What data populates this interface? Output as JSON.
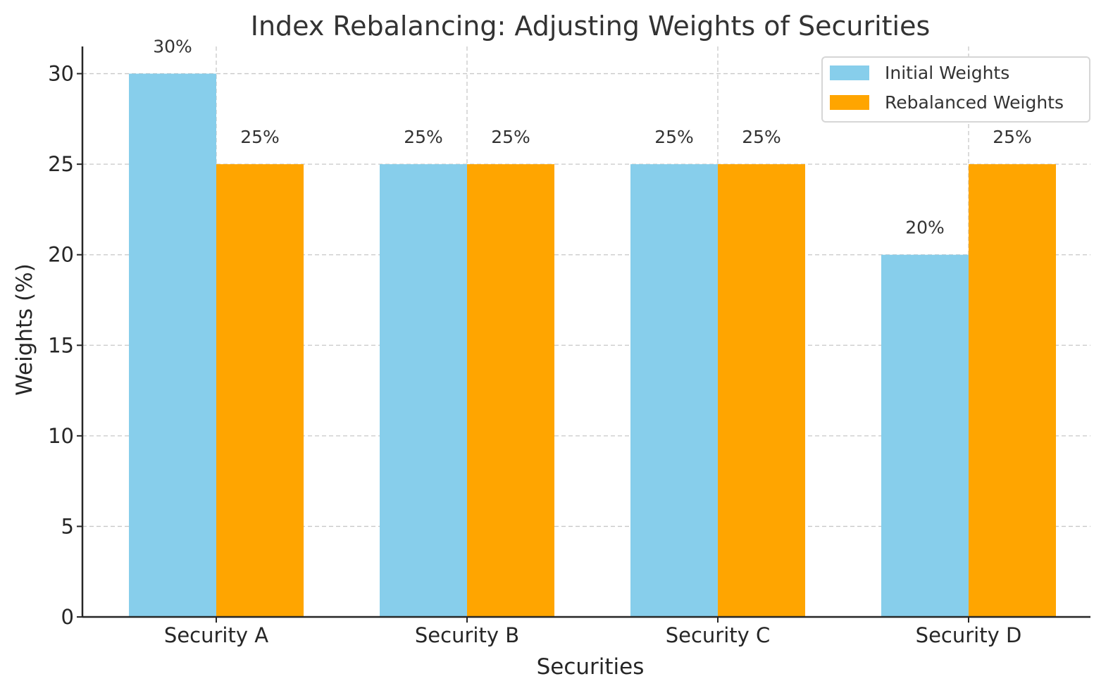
{
  "chart_data": {
    "type": "bar",
    "title": "Index Rebalancing: Adjusting Weights of Securities",
    "xlabel": "Securities",
    "ylabel": "Weights (%)",
    "categories": [
      "Security A",
      "Security B",
      "Security C",
      "Security D"
    ],
    "series": [
      {
        "name": "Initial Weights",
        "values": [
          30,
          25,
          25,
          20
        ],
        "labels": [
          "30%",
          "25%",
          "25%",
          "20%"
        ],
        "color": "#87CEEB"
      },
      {
        "name": "Rebalanced Weights",
        "values": [
          25,
          25,
          25,
          25
        ],
        "labels": [
          "25%",
          "25%",
          "25%",
          "25%"
        ],
        "color": "#FFA500"
      }
    ],
    "ylim": [
      0,
      31.5
    ],
    "yticks": [
      0,
      5,
      10,
      15,
      20,
      25,
      30
    ],
    "grid": true,
    "legend": "top-right"
  }
}
